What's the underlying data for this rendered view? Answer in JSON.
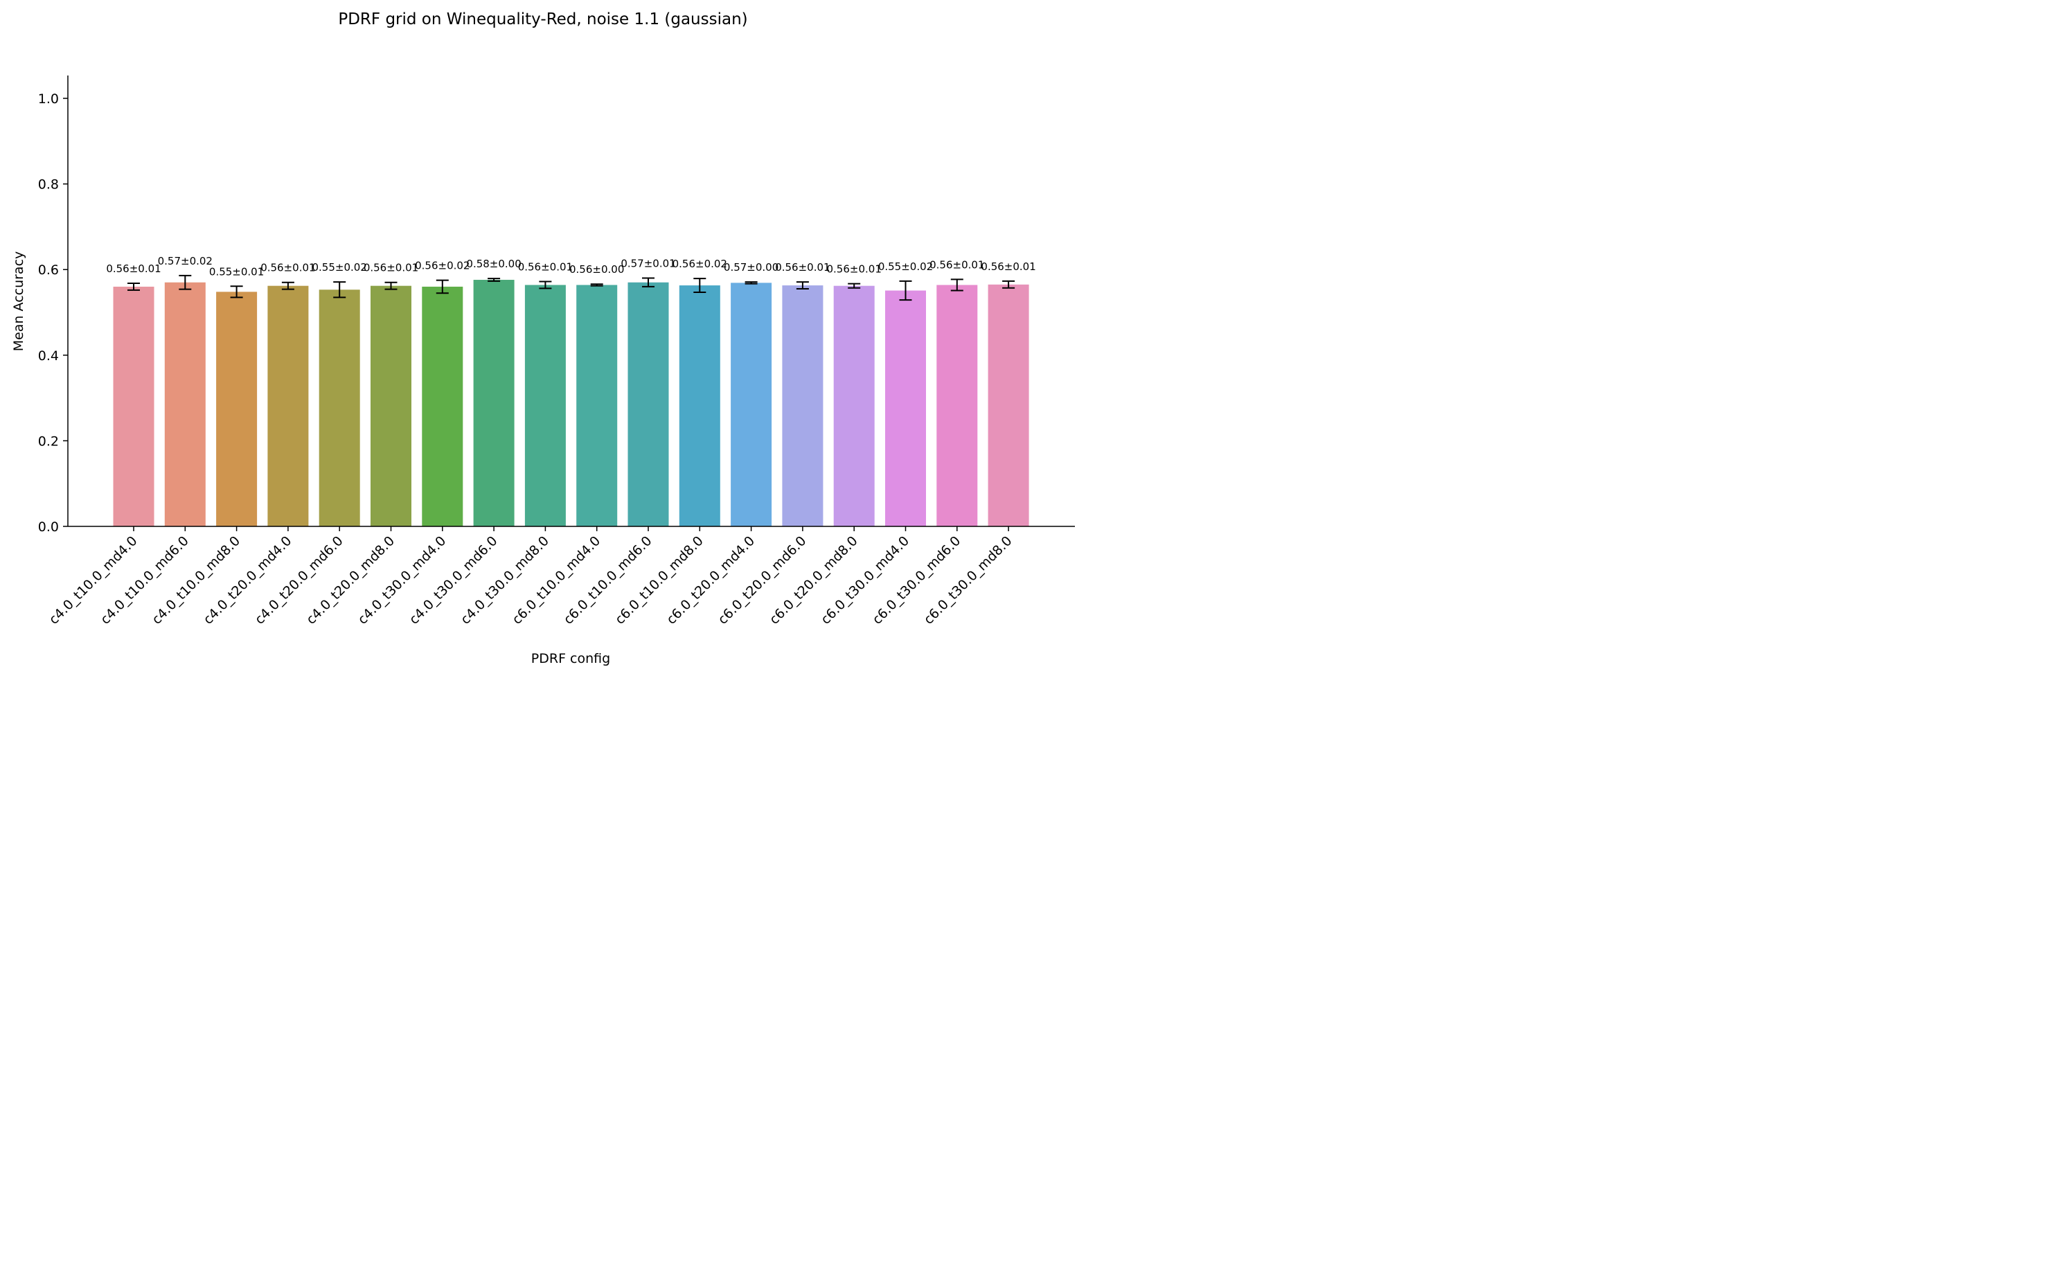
{
  "chart_data": {
    "type": "bar",
    "title": "PDRF grid on Winequality-Red, noise 1.1 (gaussian)",
    "xlabel": "PDRF config",
    "ylabel": "Mean Accuracy",
    "ylim": [
      0,
      1.05
    ],
    "yticks": [
      0.0,
      0.2,
      0.4,
      0.6,
      0.8,
      1.0
    ],
    "ytick_labels": [
      "0.0",
      "0.2",
      "0.4",
      "0.6",
      "0.8",
      "1.0"
    ],
    "grid": false,
    "categories": [
      "c4.0_t10.0_md4.0",
      "c4.0_t10.0_md6.0",
      "c4.0_t10.0_md8.0",
      "c4.0_t20.0_md4.0",
      "c4.0_t20.0_md6.0",
      "c4.0_t20.0_md8.0",
      "c4.0_t30.0_md4.0",
      "c4.0_t30.0_md6.0",
      "c4.0_t30.0_md8.0",
      "c6.0_t10.0_md4.0",
      "c6.0_t10.0_md6.0",
      "c6.0_t10.0_md8.0",
      "c6.0_t20.0_md4.0",
      "c6.0_t20.0_md6.0",
      "c6.0_t20.0_md8.0",
      "c6.0_t30.0_md4.0",
      "c6.0_t30.0_md6.0",
      "c6.0_t30.0_md8.0"
    ],
    "values": [
      0.56,
      0.57,
      0.548,
      0.562,
      0.553,
      0.562,
      0.56,
      0.576,
      0.564,
      0.564,
      0.57,
      0.563,
      0.569,
      0.563,
      0.562,
      0.551,
      0.564,
      0.565
    ],
    "errors": [
      0.008,
      0.016,
      0.013,
      0.008,
      0.018,
      0.008,
      0.015,
      0.003,
      0.008,
      0.002,
      0.01,
      0.016,
      0.002,
      0.008,
      0.005,
      0.022,
      0.013,
      0.008
    ],
    "data_labels": [
      "0.56±0.01",
      "0.57±0.02",
      "0.55±0.01",
      "0.56±0.01",
      "0.55±0.02",
      "0.56±0.01",
      "0.56±0.02",
      "0.58±0.00",
      "0.56±0.01",
      "0.56±0.00",
      "0.57±0.01",
      "0.56±0.02",
      "0.57±0.00",
      "0.56±0.01",
      "0.56±0.01",
      "0.55±0.02",
      "0.56±0.01",
      "0.56±0.01"
    ],
    "colors": [
      "#e8969f",
      "#e6947c",
      "#cf954f",
      "#b59a49",
      "#a19f48",
      "#8ba248",
      "#5fae48",
      "#4aaa79",
      "#49ab8e",
      "#4aaca0",
      "#4aa9ab",
      "#4ba8c7",
      "#6aade2",
      "#a5a9e8",
      "#c59bea",
      "#de8fe4",
      "#e78bcd",
      "#e792b9"
    ]
  }
}
